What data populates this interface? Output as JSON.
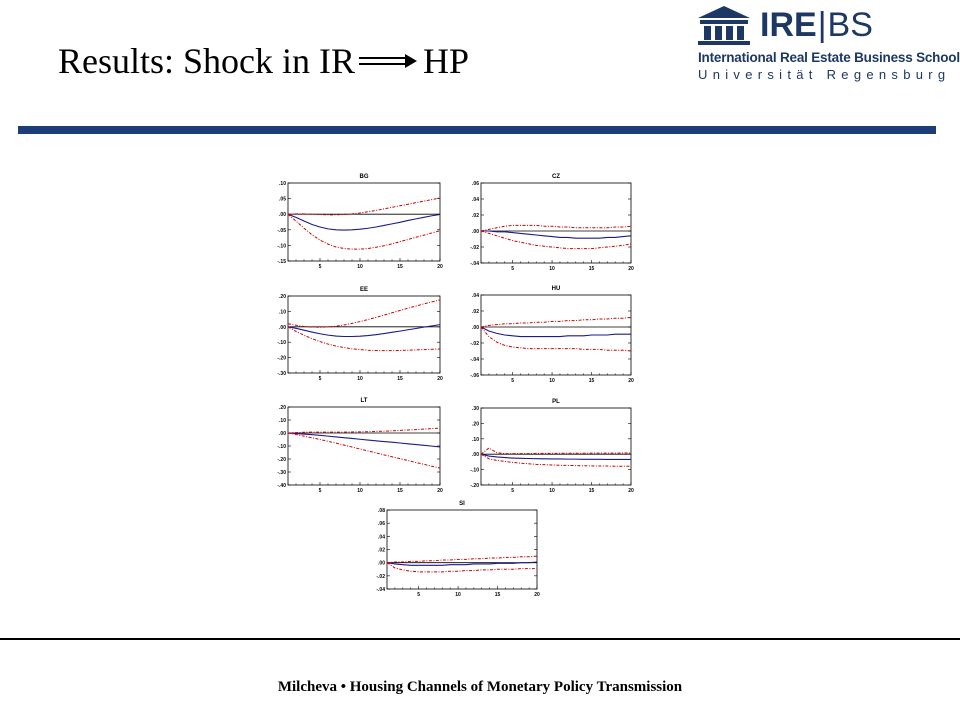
{
  "slide": {
    "title_left": "Results: Shock in IR",
    "title_right": "HP",
    "footer": "Milcheva • Housing Channels of Monetary Policy Transmission"
  },
  "logo": {
    "brand_a": "IRE",
    "brand_sep": "|",
    "brand_b": "BS",
    "school": "International Real Estate Business School",
    "university": "Universität Regensburg",
    "color": "#1d3864"
  },
  "colors": {
    "impulse": "#1a1a8c",
    "bands": "#cc0000",
    "zero_line": "#000000",
    "accent_bar": "#1d3d78"
  },
  "chart_data": [
    {
      "type": "line",
      "title": "BG",
      "xlim": [
        1,
        20
      ],
      "ylim": [
        -0.15,
        0.1
      ],
      "yticks": [
        0.1,
        0.05,
        0.0,
        -0.05,
        -0.1,
        -0.15
      ],
      "ytick_labels": [
        ".10",
        ".05",
        ".00",
        "-.05",
        "-.10",
        "-.15"
      ],
      "xticks": [
        5,
        10,
        15,
        20
      ],
      "x": [
        1,
        2,
        3,
        4,
        5,
        6,
        7,
        8,
        9,
        10,
        11,
        12,
        13,
        14,
        15,
        16,
        17,
        18,
        19,
        20
      ],
      "series": [
        {
          "values": [
            0.0,
            -0.01,
            -0.022,
            -0.033,
            -0.041,
            -0.047,
            -0.05,
            -0.051,
            -0.05,
            -0.048,
            -0.045,
            -0.041,
            -0.036,
            -0.031,
            -0.026,
            -0.02,
            -0.015,
            -0.01,
            -0.005,
            -0.001
          ]
        },
        {
          "values": [
            0.0,
            0.001,
            0.001,
            0.0,
            -0.001,
            -0.002,
            -0.002,
            -0.001,
            0.001,
            0.004,
            0.008,
            0.012,
            0.017,
            0.022,
            0.027,
            0.032,
            0.037,
            0.042,
            0.047,
            0.052
          ]
        },
        {
          "values": [
            0.0,
            -0.022,
            -0.045,
            -0.066,
            -0.083,
            -0.096,
            -0.105,
            -0.11,
            -0.112,
            -0.112,
            -0.11,
            -0.106,
            -0.101,
            -0.095,
            -0.088,
            -0.081,
            -0.074,
            -0.067,
            -0.06,
            -0.053
          ]
        }
      ]
    },
    {
      "type": "line",
      "title": "CZ",
      "xlim": [
        1,
        20
      ],
      "ylim": [
        -0.04,
        0.06
      ],
      "yticks": [
        0.06,
        0.04,
        0.02,
        0.0,
        -0.02,
        -0.04
      ],
      "ytick_labels": [
        ".06",
        ".04",
        ".02",
        ".00",
        "-.02",
        "-.04"
      ],
      "xticks": [
        5,
        10,
        15,
        20
      ],
      "x": [
        1,
        2,
        3,
        4,
        5,
        6,
        7,
        8,
        9,
        10,
        11,
        12,
        13,
        14,
        15,
        16,
        17,
        18,
        19,
        20
      ],
      "series": [
        {
          "values": [
            0.0,
            0.0,
            -0.001,
            -0.001,
            -0.002,
            -0.003,
            -0.004,
            -0.005,
            -0.006,
            -0.007,
            -0.008,
            -0.008,
            -0.009,
            -0.009,
            -0.009,
            -0.009,
            -0.008,
            -0.008,
            -0.007,
            -0.006
          ]
        },
        {
          "values": [
            0.0,
            0.002,
            0.004,
            0.006,
            0.007,
            0.007,
            0.007,
            0.007,
            0.006,
            0.006,
            0.005,
            0.005,
            0.004,
            0.004,
            0.004,
            0.004,
            0.004,
            0.005,
            0.005,
            0.006
          ]
        },
        {
          "values": [
            0.0,
            -0.003,
            -0.006,
            -0.009,
            -0.012,
            -0.014,
            -0.016,
            -0.018,
            -0.019,
            -0.02,
            -0.021,
            -0.022,
            -0.022,
            -0.022,
            -0.022,
            -0.021,
            -0.02,
            -0.019,
            -0.018,
            -0.016
          ]
        }
      ]
    },
    {
      "type": "line",
      "title": "EE",
      "xlim": [
        1,
        20
      ],
      "ylim": [
        -0.3,
        0.2
      ],
      "yticks": [
        0.2,
        0.1,
        0.0,
        -0.1,
        -0.2,
        -0.3
      ],
      "ytick_labels": [
        ".20",
        ".10",
        ".00",
        "-.10",
        "-.20",
        "-.30"
      ],
      "xticks": [
        5,
        10,
        15,
        20
      ],
      "x": [
        1,
        2,
        3,
        4,
        5,
        6,
        7,
        8,
        9,
        10,
        11,
        12,
        13,
        14,
        15,
        16,
        17,
        18,
        19,
        20
      ],
      "series": [
        {
          "values": [
            0.0,
            -0.01,
            -0.022,
            -0.034,
            -0.045,
            -0.054,
            -0.06,
            -0.063,
            -0.063,
            -0.061,
            -0.057,
            -0.051,
            -0.044,
            -0.036,
            -0.028,
            -0.019,
            -0.011,
            -0.002,
            0.006,
            0.014
          ]
        },
        {
          "values": [
            0.02,
            0.01,
            0.002,
            -0.002,
            -0.003,
            -0.001,
            0.004,
            0.012,
            0.022,
            0.034,
            0.047,
            0.061,
            0.076,
            0.091,
            0.106,
            0.121,
            0.135,
            0.149,
            0.162,
            0.175
          ]
        },
        {
          "values": [
            0.0,
            -0.03,
            -0.055,
            -0.077,
            -0.096,
            -0.112,
            -0.125,
            -0.135,
            -0.143,
            -0.148,
            -0.152,
            -0.154,
            -0.155,
            -0.155,
            -0.154,
            -0.152,
            -0.15,
            -0.148,
            -0.146,
            -0.144
          ]
        }
      ]
    },
    {
      "type": "line",
      "title": "HU",
      "xlim": [
        1,
        20
      ],
      "ylim": [
        -0.06,
        0.04
      ],
      "yticks": [
        0.04,
        0.02,
        0.0,
        -0.02,
        -0.04,
        -0.06
      ],
      "ytick_labels": [
        ".04",
        ".02",
        ".00",
        "-.02",
        "-.04",
        "-.06"
      ],
      "xticks": [
        5,
        10,
        15,
        20
      ],
      "x": [
        1,
        2,
        3,
        4,
        5,
        6,
        7,
        8,
        9,
        10,
        11,
        12,
        13,
        14,
        15,
        16,
        17,
        18,
        19,
        20
      ],
      "series": [
        {
          "values": [
            0.0,
            -0.005,
            -0.008,
            -0.01,
            -0.011,
            -0.012,
            -0.012,
            -0.012,
            -0.012,
            -0.012,
            -0.012,
            -0.011,
            -0.011,
            -0.011,
            -0.01,
            -0.01,
            -0.01,
            -0.009,
            -0.009,
            -0.009
          ]
        },
        {
          "values": [
            0.0,
            0.002,
            0.003,
            0.004,
            0.004,
            0.005,
            0.005,
            0.006,
            0.006,
            0.007,
            0.007,
            0.008,
            0.008,
            0.009,
            0.009,
            0.01,
            0.01,
            0.011,
            0.011,
            0.012
          ]
        },
        {
          "values": [
            0.0,
            -0.012,
            -0.019,
            -0.023,
            -0.025,
            -0.026,
            -0.027,
            -0.027,
            -0.027,
            -0.027,
            -0.027,
            -0.027,
            -0.027,
            -0.028,
            -0.028,
            -0.028,
            -0.029,
            -0.029,
            -0.029,
            -0.03
          ]
        }
      ]
    },
    {
      "type": "line",
      "title": "LT",
      "xlim": [
        1,
        20
      ],
      "ylim": [
        -0.4,
        0.2
      ],
      "yticks": [
        0.2,
        0.1,
        0.0,
        -0.1,
        -0.2,
        -0.3,
        -0.4
      ],
      "ytick_labels": [
        ".20",
        ".10",
        ".00",
        "-.10",
        "-.20",
        "-.30",
        "-.40"
      ],
      "xticks": [
        5,
        10,
        15,
        20
      ],
      "x": [
        1,
        2,
        3,
        4,
        5,
        6,
        7,
        8,
        9,
        10,
        11,
        12,
        13,
        14,
        15,
        16,
        17,
        18,
        19,
        20
      ],
      "series": [
        {
          "values": [
            0.0,
            -0.004,
            -0.008,
            -0.013,
            -0.018,
            -0.024,
            -0.03,
            -0.036,
            -0.042,
            -0.048,
            -0.054,
            -0.06,
            -0.066,
            -0.071,
            -0.077,
            -0.083,
            -0.089,
            -0.095,
            -0.101,
            -0.107
          ]
        },
        {
          "values": [
            0.0,
            0.003,
            0.006,
            0.007,
            0.007,
            0.007,
            0.007,
            0.007,
            0.008,
            0.009,
            0.01,
            0.012,
            0.014,
            0.017,
            0.02,
            0.023,
            0.026,
            0.03,
            0.034,
            0.038
          ]
        },
        {
          "values": [
            0.0,
            -0.012,
            -0.024,
            -0.037,
            -0.05,
            -0.064,
            -0.078,
            -0.093,
            -0.108,
            -0.123,
            -0.138,
            -0.153,
            -0.168,
            -0.183,
            -0.197,
            -0.212,
            -0.227,
            -0.241,
            -0.256,
            -0.27
          ]
        }
      ]
    },
    {
      "type": "line",
      "title": "PL",
      "xlim": [
        1,
        20
      ],
      "ylim": [
        -0.2,
        0.3
      ],
      "yticks": [
        0.3,
        0.2,
        0.1,
        0.0,
        -0.1,
        -0.2
      ],
      "ytick_labels": [
        ".30",
        ".20",
        ".10",
        ".00",
        "-.10",
        "-.20"
      ],
      "xticks": [
        5,
        10,
        15,
        20
      ],
      "x": [
        1,
        2,
        3,
        4,
        5,
        6,
        7,
        8,
        9,
        10,
        11,
        12,
        13,
        14,
        15,
        16,
        17,
        18,
        19,
        20
      ],
      "series": [
        {
          "values": [
            0.0,
            -0.012,
            -0.018,
            -0.022,
            -0.025,
            -0.027,
            -0.028,
            -0.029,
            -0.03,
            -0.031,
            -0.031,
            -0.032,
            -0.032,
            -0.033,
            -0.033,
            -0.033,
            -0.034,
            -0.034,
            -0.034,
            -0.034
          ]
        },
        {
          "values": [
            0.0,
            0.04,
            0.01,
            0.004,
            0.004,
            0.004,
            0.004,
            0.005,
            0.005,
            0.005,
            0.006,
            0.006,
            0.006,
            0.006,
            0.007,
            0.007,
            0.007,
            0.007,
            0.008,
            0.008
          ]
        },
        {
          "values": [
            0.0,
            -0.03,
            -0.04,
            -0.047,
            -0.053,
            -0.058,
            -0.062,
            -0.066,
            -0.068,
            -0.07,
            -0.072,
            -0.073,
            -0.074,
            -0.075,
            -0.076,
            -0.077,
            -0.077,
            -0.078,
            -0.078,
            -0.078
          ]
        }
      ]
    },
    {
      "type": "line",
      "title": "SI",
      "xlim": [
        1,
        20
      ],
      "ylim": [
        -0.04,
        0.08
      ],
      "yticks": [
        0.08,
        0.06,
        0.04,
        0.02,
        0.0,
        -0.02,
        -0.04
      ],
      "ytick_labels": [
        ".08",
        ".06",
        ".04",
        ".02",
        ".00",
        "-.02",
        "-.04"
      ],
      "xticks": [
        5,
        10,
        15,
        20
      ],
      "x": [
        1,
        2,
        3,
        4,
        5,
        6,
        7,
        8,
        9,
        10,
        11,
        12,
        13,
        14,
        15,
        16,
        17,
        18,
        19,
        20
      ],
      "series": [
        {
          "values": [
            0.0,
            -0.002,
            -0.003,
            -0.004,
            -0.004,
            -0.004,
            -0.004,
            -0.004,
            -0.003,
            -0.003,
            -0.003,
            -0.002,
            -0.002,
            -0.002,
            -0.001,
            -0.001,
            -0.001,
            0.0,
            0.0,
            0.001
          ]
        },
        {
          "values": [
            0.0,
            0.001,
            0.001,
            0.002,
            0.002,
            0.003,
            0.003,
            0.004,
            0.004,
            0.005,
            0.005,
            0.006,
            0.006,
            0.007,
            0.007,
            0.008,
            0.008,
            0.009,
            0.009,
            0.01
          ]
        },
        {
          "values": [
            0.0,
            -0.008,
            -0.011,
            -0.013,
            -0.014,
            -0.014,
            -0.014,
            -0.014,
            -0.013,
            -0.013,
            -0.012,
            -0.012,
            -0.011,
            -0.011,
            -0.01,
            -0.01,
            -0.01,
            -0.009,
            -0.009,
            -0.009
          ]
        }
      ]
    }
  ]
}
